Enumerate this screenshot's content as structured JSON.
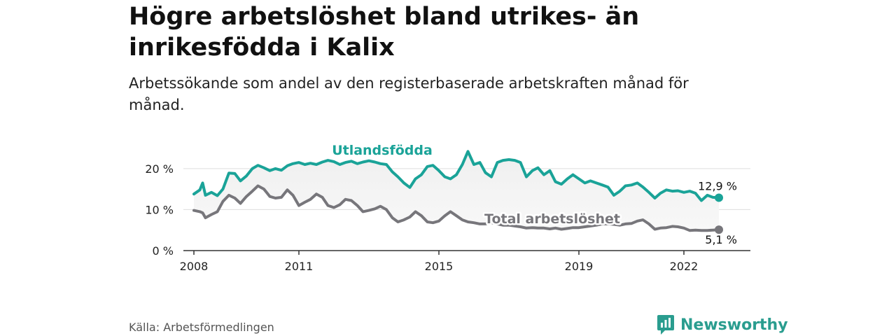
{
  "title": "Högre arbetslöshet bland utrikes- än inrikesfödda i Kalix",
  "subtitle": "Arbetssökande som andel av den registerbaserade arbetskraften månad för månad.",
  "source": "Källa: Arbetsförmedlingen",
  "brand": {
    "name": "Newsworthy",
    "icon": "newsworthy-chart-icon",
    "color": "#2a9d8f"
  },
  "chart_data": {
    "type": "line",
    "x_unit": "year",
    "xlim": [
      2007.7,
      2023.9
    ],
    "ylim": [
      0,
      21
    ],
    "grid": true,
    "y_ticks": [
      {
        "value": 0,
        "label": "0 %"
      },
      {
        "value": 10,
        "label": "10 %"
      },
      {
        "value": 20,
        "label": "20 %"
      }
    ],
    "x_ticks": [
      {
        "value": 2008,
        "label": "2008"
      },
      {
        "value": 2011,
        "label": "2011"
      },
      {
        "value": 2015,
        "label": "2015"
      },
      {
        "value": 2019,
        "label": "2019"
      },
      {
        "value": 2022,
        "label": "2022"
      }
    ],
    "series": [
      {
        "name": "Utlandsfödda",
        "color": "#1aa398",
        "end_label": "12,9 %",
        "x": [
          2008.0,
          2008.17,
          2008.25,
          2008.33,
          2008.5,
          2008.67,
          2008.83,
          2009.0,
          2009.17,
          2009.33,
          2009.5,
          2009.67,
          2009.83,
          2010.0,
          2010.17,
          2010.33,
          2010.5,
          2010.67,
          2010.83,
          2011.0,
          2011.17,
          2011.33,
          2011.5,
          2011.67,
          2011.83,
          2012.0,
          2012.17,
          2012.33,
          2012.5,
          2012.67,
          2012.83,
          2013.0,
          2013.17,
          2013.33,
          2013.5,
          2013.67,
          2013.83,
          2014.0,
          2014.17,
          2014.33,
          2014.5,
          2014.67,
          2014.83,
          2015.0,
          2015.17,
          2015.33,
          2015.5,
          2015.67,
          2015.83,
          2016.0,
          2016.17,
          2016.33,
          2016.5,
          2016.67,
          2016.83,
          2017.0,
          2017.17,
          2017.33,
          2017.5,
          2017.67,
          2017.83,
          2018.0,
          2018.17,
          2018.33,
          2018.5,
          2018.67,
          2018.83,
          2019.0,
          2019.17,
          2019.33,
          2019.5,
          2019.67,
          2019.83,
          2020.0,
          2020.17,
          2020.33,
          2020.5,
          2020.67,
          2020.83,
          2021.0,
          2021.17,
          2021.33,
          2021.5,
          2021.67,
          2021.83,
          2022.0,
          2022.17,
          2022.33,
          2022.5,
          2022.67,
          2022.83,
          2023.0
        ],
        "values": [
          13.8,
          14.8,
          16.5,
          13.5,
          14.2,
          13.4,
          15.0,
          18.9,
          18.8,
          17.0,
          18.2,
          20.0,
          20.8,
          20.2,
          19.5,
          20.0,
          19.6,
          20.7,
          21.2,
          21.5,
          21.0,
          21.3,
          21.0,
          21.6,
          22.0,
          21.7,
          21.0,
          21.5,
          21.8,
          21.2,
          21.6,
          21.9,
          21.6,
          21.2,
          21.0,
          19.2,
          18.0,
          16.5,
          15.4,
          17.5,
          18.5,
          20.5,
          20.8,
          19.5,
          18.0,
          17.5,
          18.5,
          21.0,
          24.2,
          21.0,
          21.5,
          19.0,
          18.0,
          21.5,
          22.0,
          22.2,
          22.0,
          21.5,
          18.0,
          19.5,
          20.2,
          18.5,
          19.5,
          16.8,
          16.2,
          17.5,
          18.5,
          17.5,
          16.5,
          17.0,
          16.5,
          16.0,
          15.5,
          13.5,
          14.5,
          15.8,
          16.0,
          16.5,
          15.5,
          14.2,
          12.8,
          14.0,
          14.8,
          14.5,
          14.6,
          14.2,
          14.5,
          14.0,
          12.2,
          13.5,
          13.0,
          12.9
        ]
      },
      {
        "name": "Total arbetslöshet",
        "color": "#77767b",
        "end_label": "5,1 %",
        "x": [
          2008.0,
          2008.17,
          2008.25,
          2008.33,
          2008.5,
          2008.67,
          2008.83,
          2009.0,
          2009.17,
          2009.33,
          2009.5,
          2009.67,
          2009.83,
          2010.0,
          2010.17,
          2010.33,
          2010.5,
          2010.67,
          2010.83,
          2011.0,
          2011.17,
          2011.33,
          2011.5,
          2011.67,
          2011.83,
          2012.0,
          2012.17,
          2012.33,
          2012.5,
          2012.67,
          2012.83,
          2013.0,
          2013.17,
          2013.33,
          2013.5,
          2013.67,
          2013.83,
          2014.0,
          2014.17,
          2014.33,
          2014.5,
          2014.67,
          2014.83,
          2015.0,
          2015.17,
          2015.33,
          2015.5,
          2015.67,
          2015.83,
          2016.0,
          2016.17,
          2016.33,
          2016.5,
          2016.67,
          2016.83,
          2017.0,
          2017.17,
          2017.33,
          2017.5,
          2017.67,
          2017.83,
          2018.0,
          2018.17,
          2018.33,
          2018.5,
          2018.67,
          2018.83,
          2019.0,
          2019.17,
          2019.33,
          2019.5,
          2019.67,
          2019.83,
          2020.0,
          2020.17,
          2020.33,
          2020.5,
          2020.67,
          2020.83,
          2021.0,
          2021.17,
          2021.33,
          2021.5,
          2021.67,
          2021.83,
          2022.0,
          2022.17,
          2022.33,
          2022.5,
          2022.67,
          2022.83,
          2023.0
        ],
        "values": [
          9.8,
          9.5,
          9.2,
          8.0,
          8.8,
          9.5,
          12.0,
          13.5,
          12.8,
          11.5,
          13.2,
          14.5,
          15.8,
          15.0,
          13.2,
          12.8,
          13.0,
          14.8,
          13.5,
          11.0,
          11.8,
          12.5,
          13.8,
          13.0,
          11.0,
          10.5,
          11.2,
          12.5,
          12.2,
          11.0,
          9.5,
          9.8,
          10.2,
          10.8,
          10.0,
          8.0,
          7.0,
          7.5,
          8.2,
          9.5,
          8.5,
          7.0,
          6.8,
          7.2,
          8.5,
          9.5,
          8.5,
          7.5,
          7.0,
          6.8,
          6.5,
          6.5,
          6.8,
          6.5,
          6.2,
          6.2,
          6.0,
          5.8,
          5.5,
          5.6,
          5.5,
          5.5,
          5.3,
          5.5,
          5.2,
          5.4,
          5.6,
          5.6,
          5.8,
          6.0,
          6.2,
          6.5,
          6.5,
          6.4,
          6.2,
          6.5,
          6.6,
          7.2,
          7.5,
          6.5,
          5.2,
          5.5,
          5.6,
          5.9,
          5.8,
          5.5,
          4.9,
          5.0,
          4.9,
          4.9,
          5.0,
          5.1
        ]
      }
    ]
  }
}
